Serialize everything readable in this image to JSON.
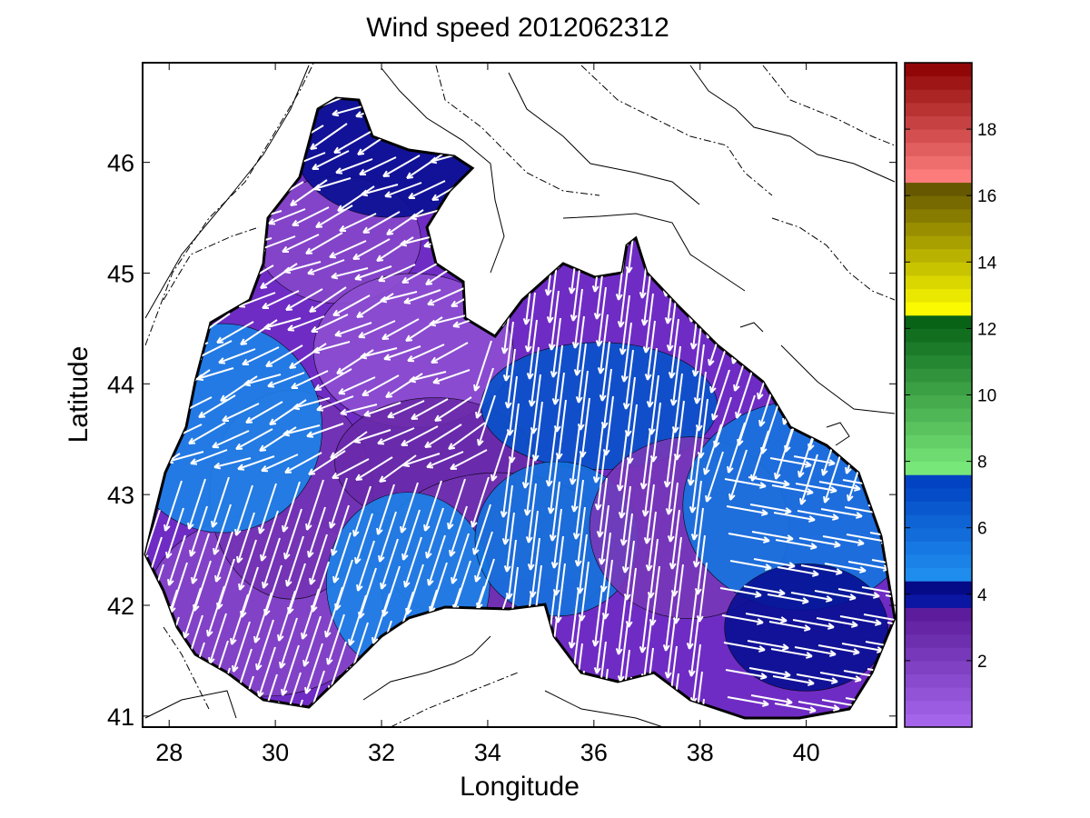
{
  "figure": {
    "title": "Wind speed 2012062312",
    "xlabel": "Longitude",
    "ylabel": "Latitude"
  },
  "map_data": {
    "type": "filled-contour-with-wind-vectors",
    "region": "Black Sea",
    "lon_range": [
      27.5,
      41.7
    ],
    "lat_range": [
      40.9,
      46.9
    ],
    "x_ticks": [
      "28",
      "30",
      "32",
      "34",
      "36",
      "38",
      "40"
    ],
    "y_ticks": [
      "41",
      "42",
      "43",
      "44",
      "45",
      "46"
    ],
    "vector_color": "#ffffff",
    "land_contour_color": "#000000",
    "speed_fields": [
      {
        "lon": 31.2,
        "lat": 45.3,
        "speed": 1.5
      },
      {
        "lon": 32.6,
        "lat": 44.3,
        "speed": 1.2
      },
      {
        "lon": 29.8,
        "lat": 42.0,
        "speed": 1.6
      },
      {
        "lon": 30.3,
        "lat": 43.0,
        "speed": 2.4
      },
      {
        "lon": 33.0,
        "lat": 43.3,
        "speed": 2.8
      },
      {
        "lon": 34.2,
        "lat": 42.5,
        "speed": 2.5
      },
      {
        "lon": 32.5,
        "lat": 42.2,
        "speed": 5.0
      },
      {
        "lon": 29.0,
        "lat": 43.6,
        "speed": 5.0
      },
      {
        "lon": 36.1,
        "lat": 43.8,
        "speed": 6.8
      },
      {
        "lon": 35.3,
        "lat": 42.6,
        "speed": 5.6
      },
      {
        "lon": 37.8,
        "lat": 42.7,
        "speed": 2.2
      },
      {
        "lon": 39.9,
        "lat": 42.9,
        "speed": 5.5
      },
      {
        "lon": 40.0,
        "lat": 41.8,
        "speed": 4.0
      },
      {
        "lon": 32.2,
        "lat": 46.2,
        "speed": 4.0
      }
    ]
  },
  "colorbar": {
    "min": 0,
    "max": 20,
    "ticks": [
      "2",
      "4",
      "6",
      "8",
      "10",
      "12",
      "14",
      "16",
      "18"
    ],
    "bands": [
      {
        "from": 0,
        "to": 3.5,
        "light": "#a86af0",
        "dark": "#5a1a98"
      },
      {
        "from": 3.5,
        "to": 4.5,
        "light": "#1020b8",
        "dark": "#000070"
      },
      {
        "from": 4.5,
        "to": 7.5,
        "light": "#2090f0",
        "dark": "#0040c0"
      },
      {
        "from": 7.5,
        "to": 12.5,
        "light": "#80f080",
        "dark": "#005a10"
      },
      {
        "from": 12.5,
        "to": 16.5,
        "light": "#ffff00",
        "dark": "#5a4a00"
      },
      {
        "from": 16.5,
        "to": 20,
        "light": "#ff8080",
        "dark": "#8a0000"
      }
    ]
  }
}
